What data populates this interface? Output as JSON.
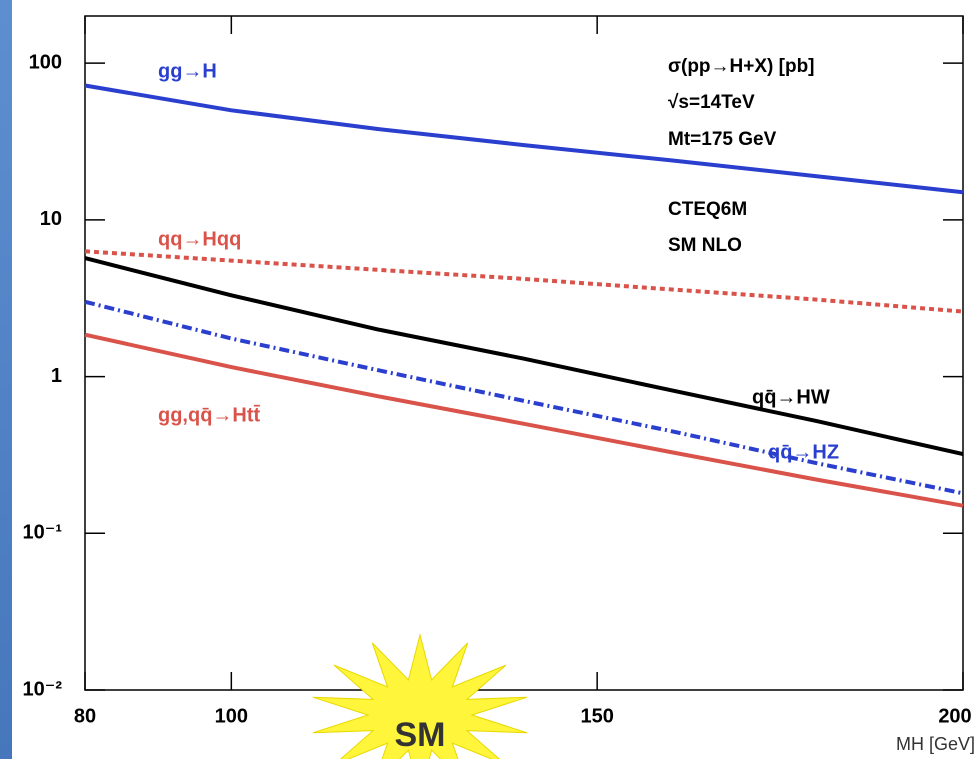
{
  "chart_data": {
    "type": "line",
    "log_y": true,
    "xlabel": "MH [GeV]",
    "x": [
      80,
      100,
      120,
      140,
      160,
      180,
      200
    ],
    "xlim": [
      80,
      200
    ],
    "xticks": [
      80,
      100,
      150,
      200
    ],
    "ylim": [
      0.01,
      200
    ],
    "yticks": [
      {
        "value": 0.01,
        "label": "10⁻²"
      },
      {
        "value": 0.1,
        "label": "10⁻¹"
      },
      1,
      10,
      100
    ],
    "series": [
      {
        "name": "gg→H",
        "color": "#2b3fcf",
        "style": "solid",
        "values": [
          72,
          50,
          38,
          30,
          24,
          19,
          15
        ]
      },
      {
        "name": "qq→Hqq",
        "color": "#d9534a",
        "style": "dotted",
        "values": [
          6.3,
          5.5,
          4.8,
          4.2,
          3.6,
          3.1,
          2.6
        ]
      },
      {
        "name": "qq̄→HW",
        "color": "#000000",
        "style": "solid",
        "values": [
          5.7,
          3.3,
          2.0,
          1.3,
          0.82,
          0.52,
          0.32
        ]
      },
      {
        "name": "qq̄→HZ",
        "color": "#2b3fcf",
        "style": "dashdot",
        "values": [
          3.0,
          1.75,
          1.1,
          0.7,
          0.45,
          0.28,
          0.18
        ]
      },
      {
        "name": "gg,qq̄→Htt̄",
        "color": "#d9534a",
        "style": "solid",
        "values": [
          1.85,
          1.15,
          0.75,
          0.5,
          0.33,
          0.22,
          0.15
        ]
      }
    ],
    "annotations": [
      "σ(pp→H+X) [pb]",
      "√s=14TeV",
      "Mt=175 GeV",
      "CTEQ6M",
      "SM NLO"
    ],
    "badge": "SM"
  }
}
